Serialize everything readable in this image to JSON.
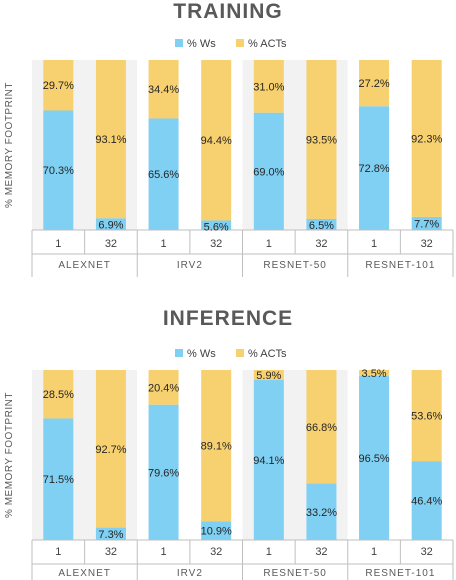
{
  "colors": {
    "ws": "#7fd0f3",
    "acts": "#f7d070",
    "panel_alt": "#f2f2f2",
    "panel": "#ffffff",
    "axis": "#bfbfbf"
  },
  "chart_data": [
    {
      "type": "bar",
      "stacked": true,
      "title": "TRAINING",
      "ylabel": "% MEMORY FOOTPRINT",
      "legend": [
        "% Ws",
        "% ACTs"
      ],
      "legend_position": "top",
      "groups": [
        "ALEXNET",
        "IRV2",
        "RESNET-50",
        "RESNET-101"
      ],
      "categories": [
        "1",
        "32",
        "1",
        "32",
        "1",
        "32",
        "1",
        "32"
      ],
      "series": [
        {
          "name": "% Ws",
          "values": [
            70.3,
            6.9,
            65.6,
            5.6,
            69.0,
            6.5,
            72.8,
            7.7
          ],
          "labels": [
            "70.3%",
            "6.9%",
            "65.6%",
            "5.6%",
            "69.0%",
            "6.5%",
            "72.8%",
            "7.7%"
          ]
        },
        {
          "name": "% ACTs",
          "values": [
            29.7,
            93.1,
            34.4,
            94.4,
            31.0,
            93.5,
            27.2,
            92.3
          ],
          "labels": [
            "29.7%",
            "93.1%",
            "34.4%",
            "94.4%",
            "31.0%",
            "93.5%",
            "27.2%",
            "92.3%"
          ]
        }
      ],
      "ylim": [
        0,
        100
      ]
    },
    {
      "type": "bar",
      "stacked": true,
      "title": "INFERENCE",
      "ylabel": "% MEMORY FOOTPRINT",
      "legend": [
        "% Ws",
        "% ACTs"
      ],
      "legend_position": "top",
      "groups": [
        "ALEXNET",
        "IRV2",
        "RESNET-50",
        "RESNET-101"
      ],
      "categories": [
        "1",
        "32",
        "1",
        "32",
        "1",
        "32",
        "1",
        "32"
      ],
      "series": [
        {
          "name": "% Ws",
          "values": [
            71.5,
            7.3,
            79.6,
            10.9,
            94.1,
            33.2,
            96.5,
            46.4
          ],
          "labels": [
            "71.5%",
            "7.3%",
            "79.6%",
            "10.9%",
            "94.1%",
            "33.2%",
            "96.5%",
            "46.4%"
          ]
        },
        {
          "name": "% ACTs",
          "values": [
            28.5,
            92.7,
            20.4,
            89.1,
            5.9,
            66.8,
            3.5,
            53.6
          ],
          "labels": [
            "28.5%",
            "92.7%",
            "20.4%",
            "89.1%",
            "5.9%",
            "66.8%",
            "3.5%",
            "53.6%"
          ]
        }
      ],
      "ylim": [
        0,
        100
      ]
    }
  ]
}
